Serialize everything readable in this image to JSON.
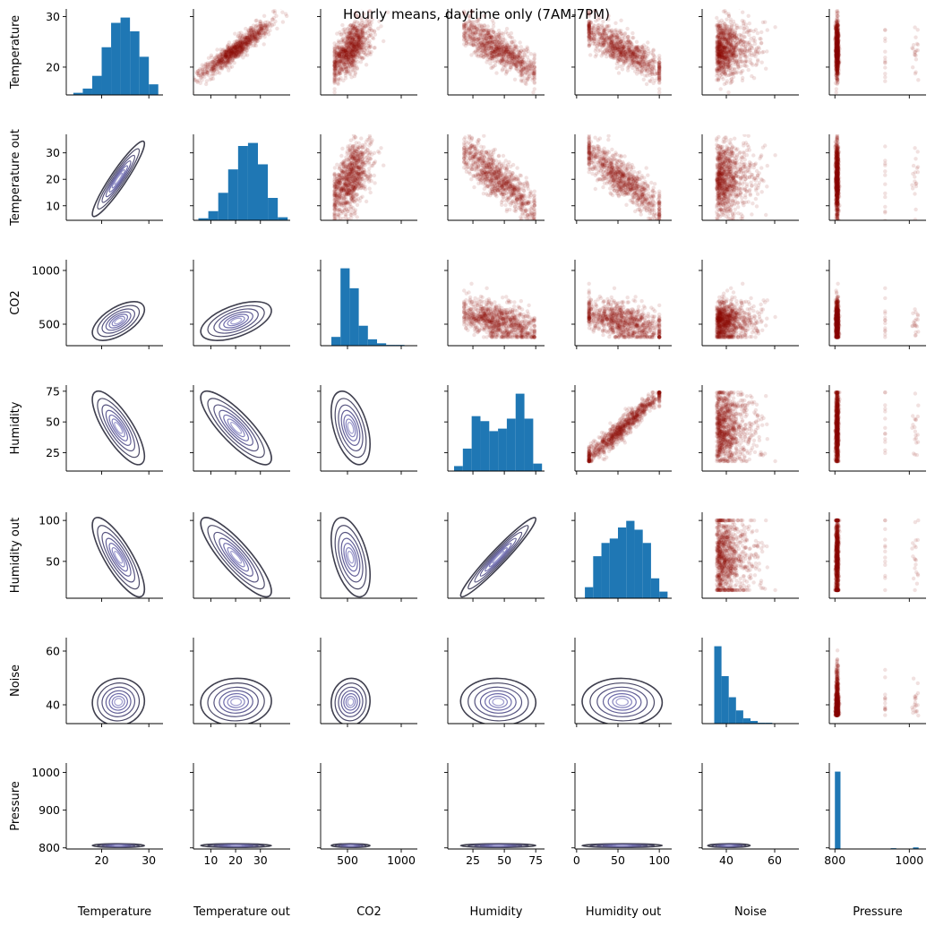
{
  "chart_data": {
    "type": "pairplot",
    "title": "Hourly means, daytime only (7AM-7PM)",
    "variables": [
      "Temperature",
      "Temperature out",
      "CO2",
      "Humidity",
      "Humidity out",
      "Noise",
      "Pressure"
    ],
    "layout": {
      "diagonal": "histogram",
      "upper": "scatter",
      "lower": "kde_contour"
    },
    "axes": [
      {
        "name": "Temperature",
        "range": [
          12.5,
          33
        ],
        "ticks": [
          20,
          30
        ],
        "ylim": [
          14.5,
          31.5
        ],
        "yticks": [
          20,
          30
        ]
      },
      {
        "name": "Temperature out",
        "range": [
          3,
          42
        ],
        "ticks": [
          10,
          20,
          30
        ],
        "ylim": [
          4.5,
          37
        ],
        "yticks": [
          10,
          20,
          30
        ]
      },
      {
        "name": "CO2",
        "range": [
          250,
          1150
        ],
        "ticks": [
          500,
          1000
        ],
        "ylim": [
          300,
          1100
        ],
        "yticks": [
          500,
          1000
        ]
      },
      {
        "name": "Humidity",
        "range": [
          5,
          82
        ],
        "ticks": [
          25,
          50,
          75
        ],
        "ylim": [
          10,
          80
        ],
        "yticks": [
          25,
          50,
          75
        ]
      },
      {
        "name": "Humidity out",
        "range": [
          -2,
          115
        ],
        "ticks": [
          0,
          50,
          100
        ],
        "ylim": [
          5,
          110
        ],
        "yticks": [
          50,
          100
        ]
      },
      {
        "name": "Noise",
        "range": [
          30,
          70
        ],
        "ticks": [
          40,
          60
        ],
        "ylim": [
          33,
          65
        ],
        "yticks": [
          40,
          60
        ]
      },
      {
        "name": "Pressure",
        "range": [
          785,
          1045
        ],
        "ticks": [
          800,
          1000
        ],
        "ylim": [
          797,
          1025
        ],
        "yticks": [
          800,
          900,
          1000
        ]
      }
    ],
    "histograms": [
      {
        "edges": [
          14,
          16,
          18,
          20,
          22,
          24,
          26,
          28,
          30,
          32
        ],
        "counts": [
          2,
          6,
          18,
          45,
          68,
          73,
          60,
          36,
          10
        ]
      },
      {
        "edges": [
          5,
          9,
          13,
          17,
          21,
          25,
          29,
          33,
          37,
          41
        ],
        "counts": [
          2,
          9,
          27,
          50,
          73,
          76,
          55,
          22,
          3
        ]
      },
      {
        "edges": [
          350,
          435,
          520,
          605,
          690,
          775,
          860,
          945,
          1030
        ],
        "counts": [
          11,
          97,
          72,
          25,
          8,
          3,
          1,
          1
        ]
      },
      {
        "edges": [
          10,
          17,
          24,
          31,
          38,
          45,
          52,
          59,
          66,
          73,
          80
        ],
        "counts": [
          2,
          9,
          22,
          20,
          16,
          17,
          21,
          31,
          21,
          3
        ]
      },
      {
        "edges": [
          10,
          20,
          30,
          40,
          50,
          60,
          70,
          80,
          90,
          100,
          110
        ],
        "counts": [
          5,
          19,
          25,
          27,
          32,
          35,
          31,
          25,
          9,
          3
        ]
      },
      {
        "edges": [
          35,
          38,
          41,
          44,
          47,
          50,
          53,
          56,
          59,
          62,
          65
        ],
        "counts": [
          88,
          54,
          30,
          15,
          6,
          3,
          1,
          1,
          0,
          0
        ]
      },
      {
        "edges": [
          800,
          815,
          830,
          845,
          860,
          875,
          890,
          905,
          920,
          935,
          950,
          965,
          980,
          995,
          1010,
          1025
        ],
        "counts": [
          97,
          0,
          0,
          0,
          0,
          0,
          0,
          0,
          0,
          0,
          1,
          0,
          0,
          0,
          2
        ]
      }
    ],
    "scatter_color": "#8b0a00",
    "kde_color": "#6d6aa8",
    "hist_color": "#1f77b4"
  }
}
